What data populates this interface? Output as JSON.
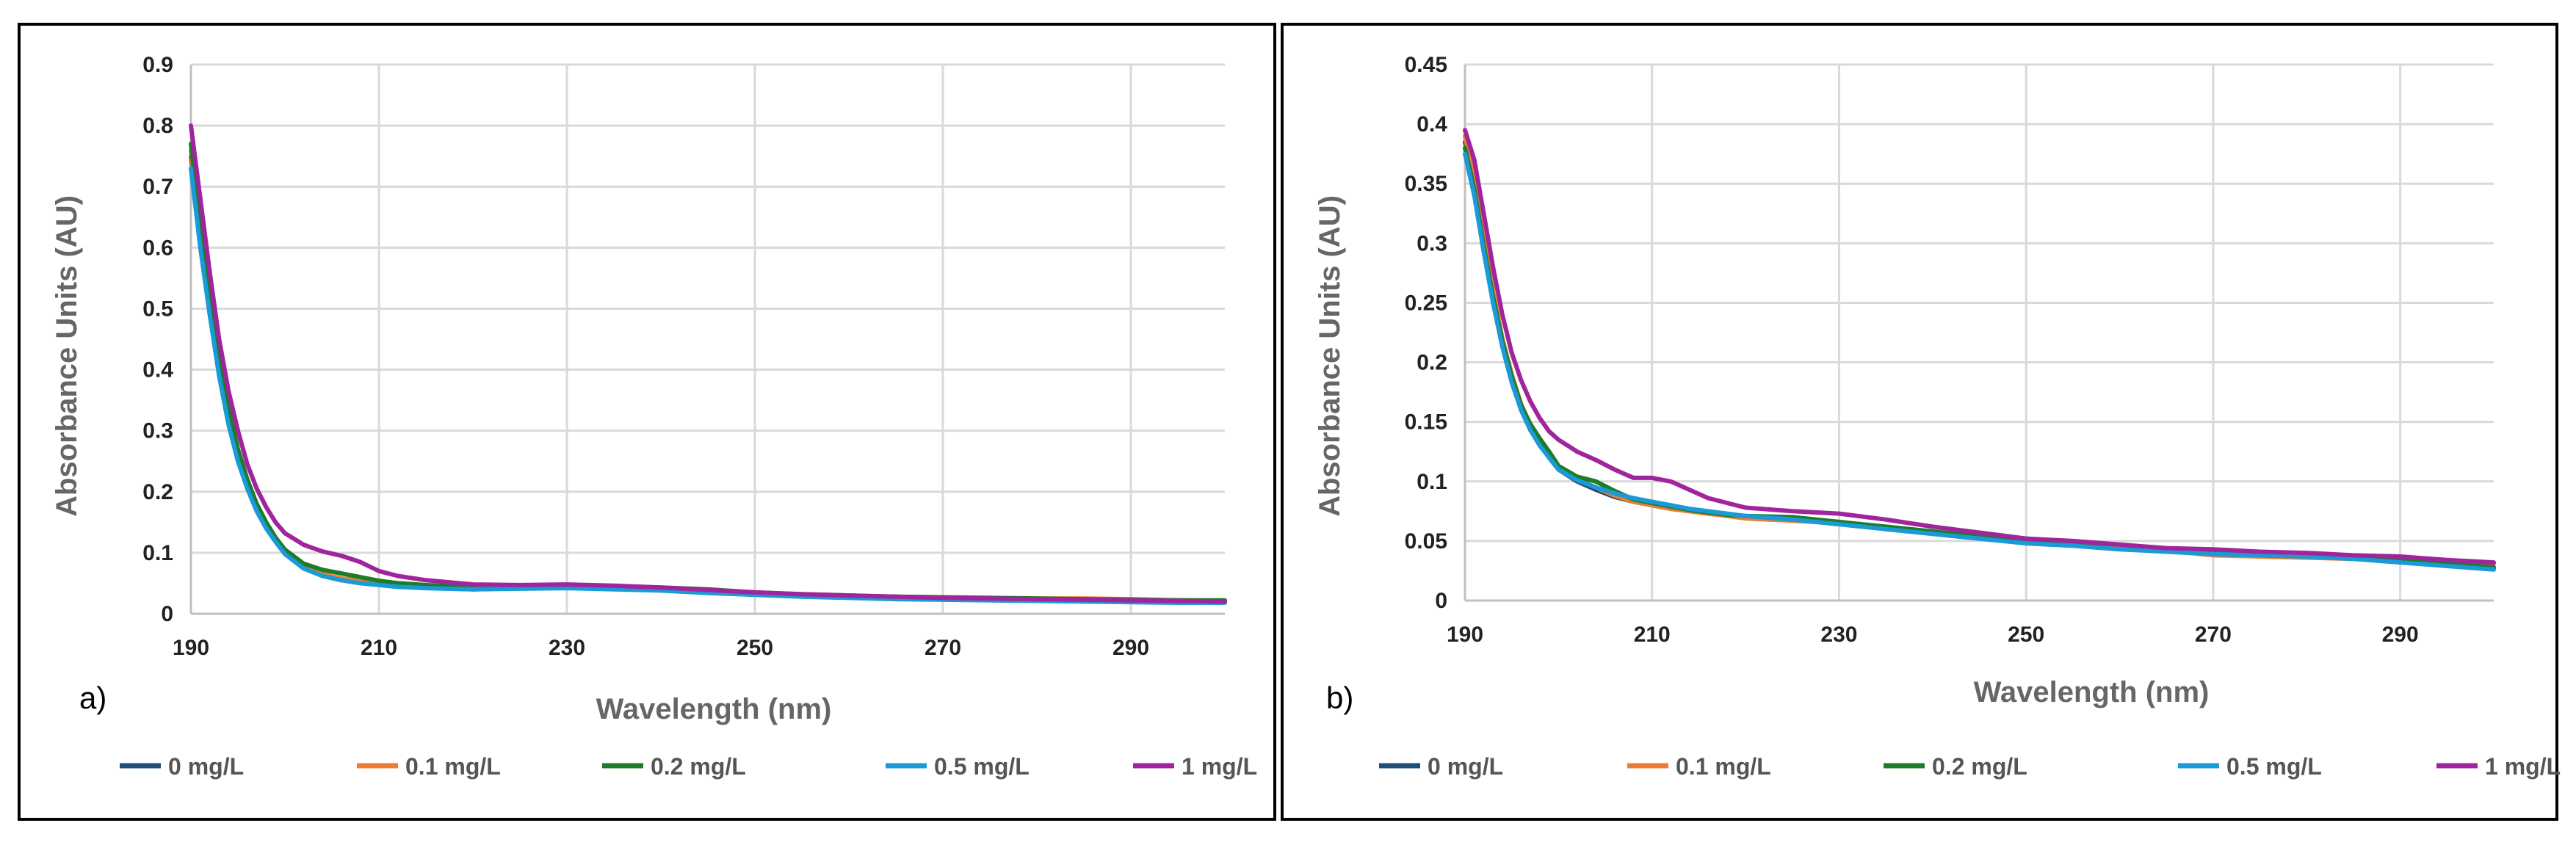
{
  "chart_data": [
    {
      "type": "line",
      "panel_label": "a)",
      "xlabel": "Wavelength (nm)",
      "ylabel": "Absorbance Units (AU)",
      "xlim": [
        190,
        300
      ],
      "ylim": [
        0,
        0.9
      ],
      "x_ticks": [
        "190",
        "210",
        "230",
        "250",
        "270",
        "290"
      ],
      "y_ticks": [
        "0",
        "0.1",
        "0.2",
        "0.3",
        "0.4",
        "0.5",
        "0.6",
        "0.7",
        "0.8",
        "0.9"
      ],
      "grid": true,
      "legend_position": "bottom",
      "x": [
        190,
        191,
        192,
        193,
        194,
        195,
        196,
        197,
        198,
        199,
        200,
        202,
        204,
        206,
        208,
        210,
        212,
        215,
        220,
        225,
        230,
        235,
        240,
        245,
        250,
        255,
        260,
        265,
        270,
        275,
        280,
        285,
        290,
        295,
        300
      ],
      "series": [
        {
          "name": "0 mg/L",
          "color": "#1f4e79",
          "values": [
            0.75,
            0.62,
            0.5,
            0.4,
            0.32,
            0.26,
            0.21,
            0.17,
            0.145,
            0.12,
            0.1,
            0.075,
            0.062,
            0.055,
            0.052,
            0.05,
            0.047,
            0.045,
            0.04,
            0.042,
            0.044,
            0.042,
            0.04,
            0.036,
            0.033,
            0.03,
            0.028,
            0.026,
            0.025,
            0.024,
            0.023,
            0.022,
            0.021,
            0.02,
            0.02
          ]
        },
        {
          "name": "0.1 mg/L",
          "color": "#ed7d31",
          "values": [
            0.76,
            0.63,
            0.51,
            0.41,
            0.33,
            0.265,
            0.215,
            0.175,
            0.148,
            0.123,
            0.102,
            0.078,
            0.065,
            0.058,
            0.054,
            0.051,
            0.048,
            0.046,
            0.042,
            0.044,
            0.045,
            0.043,
            0.041,
            0.037,
            0.034,
            0.031,
            0.029,
            0.027,
            0.026,
            0.025,
            0.025,
            0.025,
            0.024,
            0.022,
            0.021
          ]
        },
        {
          "name": "0.2 mg/L",
          "color": "#1e7b2a",
          "values": [
            0.77,
            0.64,
            0.52,
            0.42,
            0.335,
            0.27,
            0.22,
            0.18,
            0.15,
            0.125,
            0.105,
            0.082,
            0.072,
            0.066,
            0.06,
            0.054,
            0.05,
            0.047,
            0.043,
            0.046,
            0.047,
            0.045,
            0.043,
            0.04,
            0.035,
            0.032,
            0.03,
            0.028,
            0.027,
            0.026,
            0.025,
            0.024,
            0.023,
            0.022,
            0.022
          ]
        },
        {
          "name": "0.5 mg/L",
          "color": "#1a9ad6",
          "values": [
            0.73,
            0.6,
            0.49,
            0.39,
            0.31,
            0.25,
            0.205,
            0.168,
            0.14,
            0.118,
            0.098,
            0.074,
            0.062,
            0.055,
            0.05,
            0.047,
            0.044,
            0.042,
            0.04,
            0.041,
            0.042,
            0.04,
            0.038,
            0.034,
            0.031,
            0.028,
            0.026,
            0.024,
            0.023,
            0.022,
            0.021,
            0.02,
            0.019,
            0.018,
            0.018
          ]
        },
        {
          "name": "1 mg/L",
          "color": "#a0259d",
          "values": [
            0.8,
            0.68,
            0.56,
            0.45,
            0.365,
            0.3,
            0.245,
            0.205,
            0.175,
            0.15,
            0.132,
            0.113,
            0.102,
            0.095,
            0.085,
            0.07,
            0.062,
            0.055,
            0.048,
            0.047,
            0.048,
            0.046,
            0.043,
            0.039,
            0.035,
            0.032,
            0.03,
            0.028,
            0.026,
            0.025,
            0.024,
            0.023,
            0.022,
            0.021,
            0.02
          ]
        }
      ]
    },
    {
      "type": "line",
      "panel_label": "b)",
      "xlabel": "Wavelength (nm)",
      "ylabel": "Absorbance Units (AU)",
      "xlim": [
        190,
        300
      ],
      "ylim": [
        0,
        0.45
      ],
      "x_ticks": [
        "190",
        "210",
        "230",
        "250",
        "270",
        "290"
      ],
      "y_ticks": [
        "0",
        "0.05",
        "0.1",
        "0.15",
        "0.2",
        "0.25",
        "0.3",
        "0.35",
        "0.4",
        "0.45"
      ],
      "grid": true,
      "legend_position": "bottom",
      "x": [
        190,
        191,
        192,
        193,
        194,
        195,
        196,
        197,
        198,
        199,
        200,
        202,
        204,
        206,
        208,
        210,
        212,
        214,
        216,
        218,
        220,
        225,
        230,
        235,
        240,
        245,
        250,
        255,
        260,
        265,
        270,
        275,
        280,
        285,
        290,
        295,
        300
      ],
      "series": [
        {
          "name": "0 mg/L",
          "color": "#1f4e79",
          "values": [
            0.385,
            0.35,
            0.3,
            0.255,
            0.215,
            0.185,
            0.16,
            0.143,
            0.132,
            0.12,
            0.11,
            0.1,
            0.093,
            0.087,
            0.083,
            0.08,
            0.077,
            0.075,
            0.073,
            0.072,
            0.07,
            0.068,
            0.065,
            0.06,
            0.056,
            0.052,
            0.05,
            0.047,
            0.044,
            0.043,
            0.04,
            0.039,
            0.038,
            0.036,
            0.033,
            0.03,
            0.027
          ]
        },
        {
          "name": "0.1 mg/L",
          "color": "#ed7d31",
          "values": [
            0.39,
            0.355,
            0.305,
            0.26,
            0.22,
            0.19,
            0.165,
            0.147,
            0.135,
            0.123,
            0.112,
            0.102,
            0.095,
            0.088,
            0.083,
            0.08,
            0.077,
            0.075,
            0.073,
            0.071,
            0.069,
            0.067,
            0.065,
            0.06,
            0.057,
            0.053,
            0.05,
            0.048,
            0.045,
            0.042,
            0.038,
            0.037,
            0.036,
            0.035,
            0.034,
            0.033,
            0.031
          ]
        },
        {
          "name": "0.2 mg/L",
          "color": "#1e7b2a",
          "values": [
            0.38,
            0.345,
            0.298,
            0.255,
            0.218,
            0.188,
            0.164,
            0.148,
            0.136,
            0.125,
            0.113,
            0.104,
            0.1,
            0.092,
            0.085,
            0.082,
            0.079,
            0.076,
            0.074,
            0.072,
            0.071,
            0.07,
            0.066,
            0.062,
            0.058,
            0.054,
            0.05,
            0.049,
            0.047,
            0.043,
            0.04,
            0.038,
            0.037,
            0.036,
            0.034,
            0.031,
            0.028
          ]
        },
        {
          "name": "0.5 mg/L",
          "color": "#1a9ad6",
          "values": [
            0.375,
            0.34,
            0.293,
            0.25,
            0.213,
            0.183,
            0.16,
            0.143,
            0.13,
            0.12,
            0.11,
            0.101,
            0.095,
            0.09,
            0.086,
            0.083,
            0.08,
            0.077,
            0.075,
            0.073,
            0.071,
            0.068,
            0.064,
            0.06,
            0.056,
            0.052,
            0.048,
            0.046,
            0.043,
            0.041,
            0.039,
            0.038,
            0.037,
            0.035,
            0.032,
            0.029,
            0.026
          ]
        },
        {
          "name": "1 mg/L",
          "color": "#a0259d",
          "values": [
            0.395,
            0.37,
            0.325,
            0.28,
            0.24,
            0.208,
            0.185,
            0.167,
            0.153,
            0.142,
            0.135,
            0.125,
            0.118,
            0.11,
            0.103,
            0.103,
            0.1,
            0.093,
            0.086,
            0.082,
            0.078,
            0.075,
            0.073,
            0.068,
            0.062,
            0.057,
            0.052,
            0.05,
            0.047,
            0.044,
            0.043,
            0.041,
            0.04,
            0.038,
            0.037,
            0.034,
            0.032
          ]
        }
      ]
    }
  ]
}
